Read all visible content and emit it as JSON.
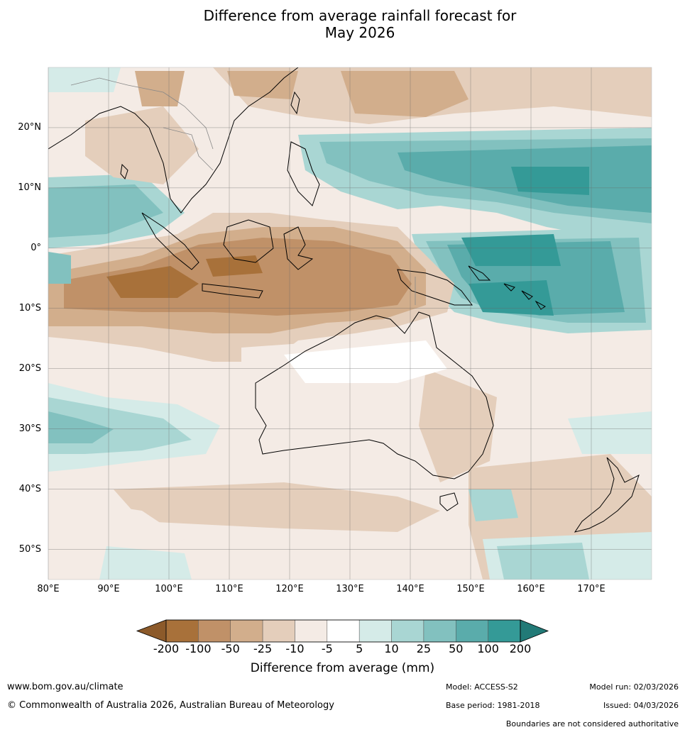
{
  "title": {
    "line1": "Difference from average rainfall forecast for",
    "line2": "May 2026"
  },
  "map": {
    "lat_labels": [
      "20°N",
      "10°N",
      "0°",
      "10°S",
      "20°S",
      "30°S",
      "40°S",
      "50°S"
    ],
    "lon_labels": [
      "80°E",
      "90°E",
      "100°E",
      "110°E",
      "120°E",
      "130°E",
      "140°E",
      "150°E",
      "160°E",
      "170°E"
    ],
    "lon_range": [
      80,
      180
    ],
    "lat_range": [
      -55,
      30
    ]
  },
  "colorbar": {
    "label": "Difference from average (mm)",
    "ticks": [
      "-200",
      "-100",
      "-50",
      "-25",
      "-10",
      "-5",
      "5",
      "10",
      "25",
      "50",
      "100",
      "200"
    ],
    "colors": [
      "#8c5a2a",
      "#a8713a",
      "#c09168",
      "#d2ae8c",
      "#e4cebb",
      "#f4ebe5",
      "#ffffff",
      "#d5ebe8",
      "#a9d6d3",
      "#82c1bf",
      "#5aacab",
      "#349a97",
      "#227a77"
    ]
  },
  "footer": {
    "website": "www.bom.gov.au/climate",
    "copyright": "© Commonwealth of Australia 2026, Australian Bureau of Meteorology",
    "model": "Model: ACCESS-S2",
    "model_run": "Model run: 02/03/2026",
    "base_period": "Base period: 1981-2018",
    "issued": "Issued: 04/03/2026",
    "disclaimer": "Boundaries are not considered authoritative"
  }
}
